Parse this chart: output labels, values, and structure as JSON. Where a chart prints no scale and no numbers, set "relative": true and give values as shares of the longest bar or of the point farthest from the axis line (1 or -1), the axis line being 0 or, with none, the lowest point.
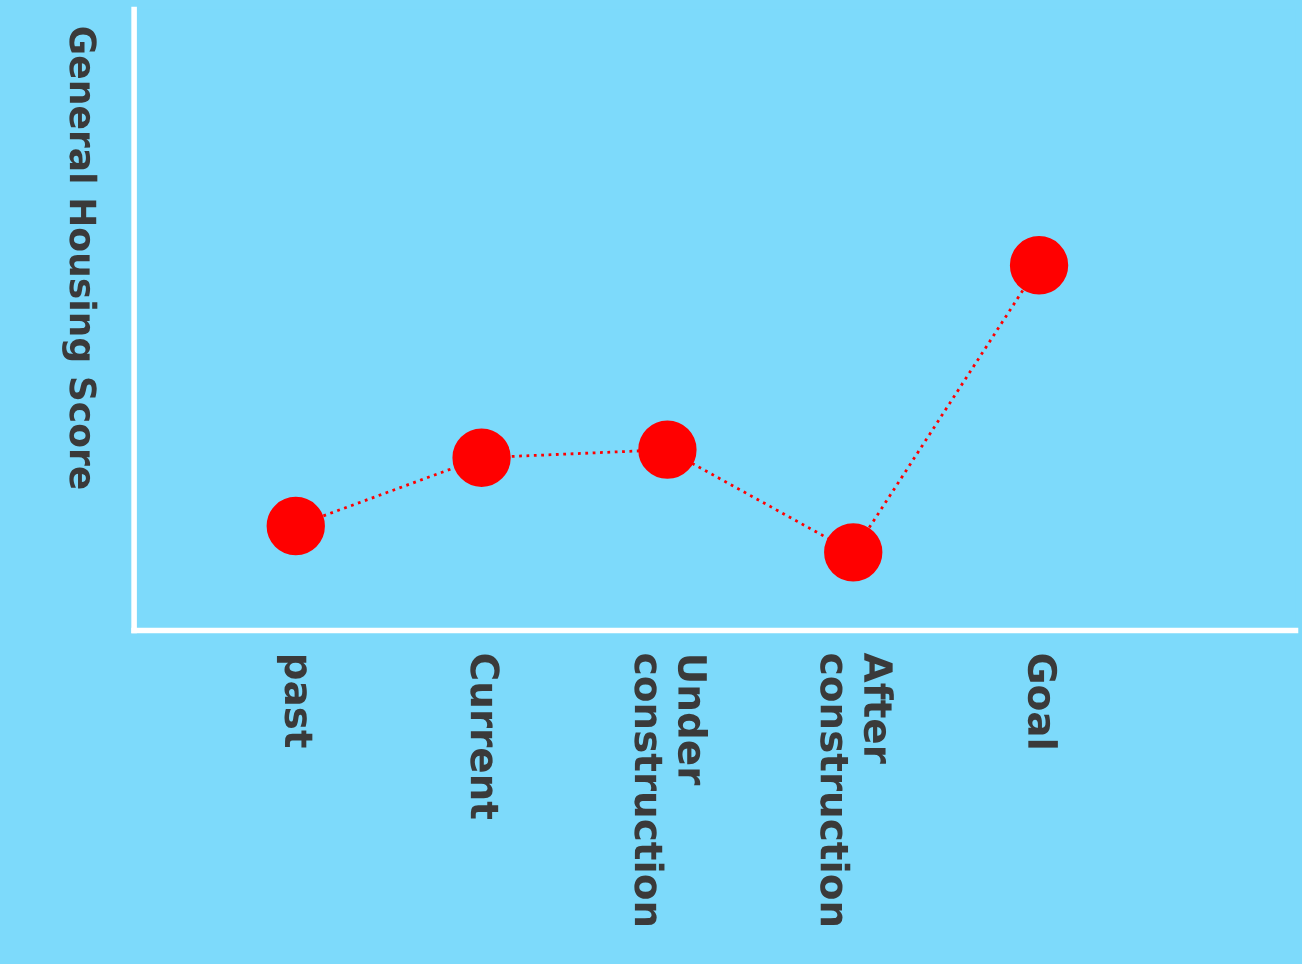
{
  "chart_data": {
    "type": "line",
    "relative": true,
    "ylabel": "General Housing Score",
    "categories": [
      "past",
      "Current",
      "Under\nconstruction",
      "After\nconstruction",
      "Goal"
    ],
    "series": [
      {
        "color": "#ff0000",
        "values": [
          0.286,
          0.473,
          0.495,
          0.214,
          1
        ]
      }
    ],
    "marker": "circle",
    "line_style": "dotted",
    "grid": false,
    "legend": false
  }
}
